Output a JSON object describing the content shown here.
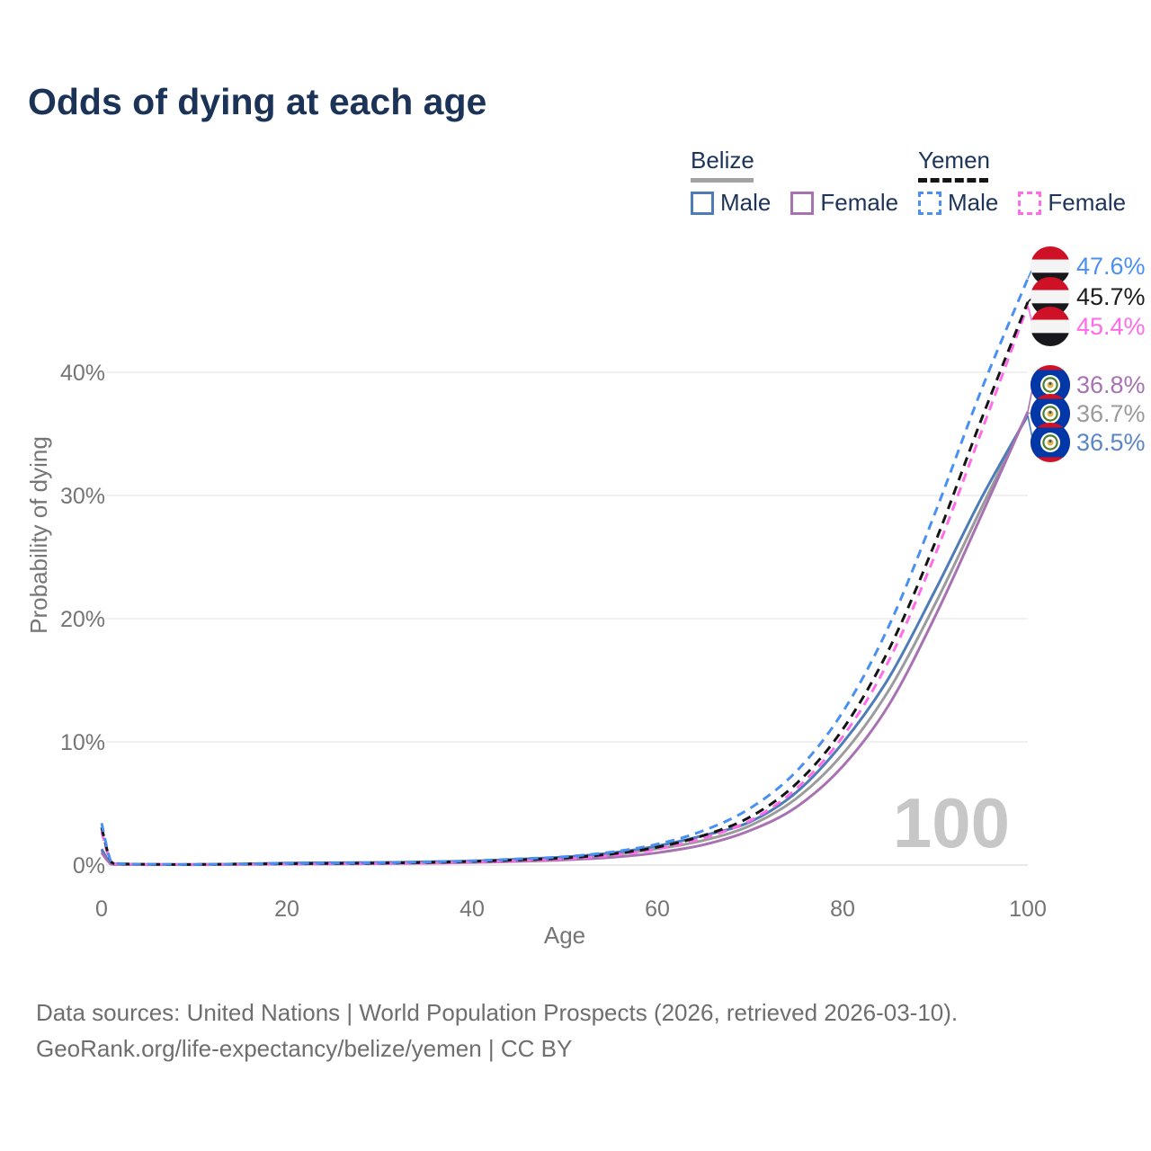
{
  "page": {
    "title": "Odds of dying at each age",
    "watermark": "100"
  },
  "legend": {
    "groups": [
      {
        "country": "Belize",
        "style": "solid",
        "underline_color": "#a3a3a3",
        "items": [
          {
            "label": "Male",
            "color": "#4e7cb8"
          },
          {
            "label": "Female",
            "color": "#a872b2"
          }
        ]
      },
      {
        "country": "Yemen",
        "style": "dashed",
        "underline_color": "#141414",
        "items": [
          {
            "label": "Male",
            "color": "#4a90f2"
          },
          {
            "label": "Female",
            "color": "#ff6be8"
          }
        ]
      }
    ]
  },
  "chart_data": {
    "type": "line",
    "title": "Odds of dying at each age",
    "xlabel": "Age",
    "ylabel": "Probability of dying",
    "x_ticks": [
      0,
      20,
      40,
      60,
      80,
      100
    ],
    "y_ticks": [
      0,
      10,
      20,
      30,
      40
    ],
    "y_tick_suffix": "%",
    "xlim": [
      0,
      100
    ],
    "ylim": [
      0,
      48
    ],
    "grid": true,
    "legend_position": "top-right",
    "x": [
      0,
      1,
      2,
      5,
      10,
      15,
      20,
      25,
      30,
      35,
      40,
      45,
      50,
      55,
      60,
      65,
      70,
      75,
      80,
      85,
      90,
      95,
      100
    ],
    "series": [
      {
        "name": "Yemen Male",
        "country": "Yemen",
        "sex": "male",
        "color": "#4a90f2",
        "dash": true,
        "values": [
          3.4,
          0.3,
          0.12,
          0.07,
          0.06,
          0.09,
          0.13,
          0.16,
          0.19,
          0.25,
          0.35,
          0.5,
          0.68,
          1.05,
          1.7,
          2.8,
          4.6,
          7.6,
          12.4,
          19.4,
          28.6,
          38.6,
          47.6
        ]
      },
      {
        "name": "Yemen Total",
        "country": "Yemen",
        "sex": "total",
        "color": "#141414",
        "dash": true,
        "values": [
          3.05,
          0.28,
          0.11,
          0.06,
          0.05,
          0.08,
          0.11,
          0.13,
          0.16,
          0.21,
          0.3,
          0.42,
          0.58,
          0.9,
          1.45,
          2.4,
          3.9,
          6.6,
          11.0,
          17.5,
          26.2,
          36.2,
          45.7
        ]
      },
      {
        "name": "Yemen Female",
        "country": "Yemen",
        "sex": "female",
        "color": "#ff6be8",
        "dash": true,
        "values": [
          2.7,
          0.26,
          0.1,
          0.06,
          0.05,
          0.06,
          0.08,
          0.1,
          0.13,
          0.17,
          0.25,
          0.35,
          0.5,
          0.78,
          1.3,
          2.2,
          3.6,
          6.2,
          10.4,
          16.6,
          25.2,
          35.2,
          45.4
        ]
      },
      {
        "name": "Belize Female",
        "country": "Belize",
        "sex": "female",
        "color": "#a872b2",
        "dash": false,
        "values": [
          1.0,
          0.08,
          0.05,
          0.03,
          0.03,
          0.05,
          0.07,
          0.09,
          0.11,
          0.15,
          0.21,
          0.3,
          0.42,
          0.62,
          1.0,
          1.65,
          2.8,
          4.7,
          8.0,
          13.0,
          20.2,
          28.4,
          36.8
        ]
      },
      {
        "name": "Belize Total",
        "country": "Belize",
        "sex": "total",
        "color": "#9b9b9b",
        "dash": false,
        "values": [
          1.15,
          0.09,
          0.06,
          0.04,
          0.04,
          0.07,
          0.12,
          0.14,
          0.16,
          0.2,
          0.27,
          0.38,
          0.54,
          0.82,
          1.32,
          2.0,
          3.2,
          5.4,
          9.0,
          14.2,
          21.2,
          29.0,
          36.7
        ]
      },
      {
        "name": "Belize Male",
        "country": "Belize",
        "sex": "male",
        "color": "#4e7cb8",
        "dash": false,
        "values": [
          1.3,
          0.1,
          0.06,
          0.04,
          0.04,
          0.09,
          0.16,
          0.19,
          0.21,
          0.26,
          0.33,
          0.48,
          0.66,
          0.98,
          1.55,
          2.4,
          3.5,
          5.9,
          9.9,
          15.2,
          22.3,
          29.8,
          36.5
        ]
      }
    ],
    "annotations": [
      "100"
    ]
  },
  "end_labels": [
    {
      "value": "47.6%",
      "color": "#4a90f2",
      "flag": "yemen"
    },
    {
      "value": "45.7%",
      "color": "#1c1c1c",
      "flag": "yemen"
    },
    {
      "value": "45.4%",
      "color": "#ff6be8",
      "flag": "yemen"
    },
    {
      "value": "36.8%",
      "color": "#a872b2",
      "flag": "belize"
    },
    {
      "value": "36.7%",
      "color": "#9b9b9b",
      "flag": "belize"
    },
    {
      "value": "36.5%",
      "color": "#5b86c4",
      "flag": "belize"
    }
  ],
  "footer": {
    "line1": "Data sources: United Nations | World Population Prospects (2026, retrieved 2026-03-10).",
    "line2": "GeoRank.org/life-expectancy/belize/yemen | CC BY"
  }
}
